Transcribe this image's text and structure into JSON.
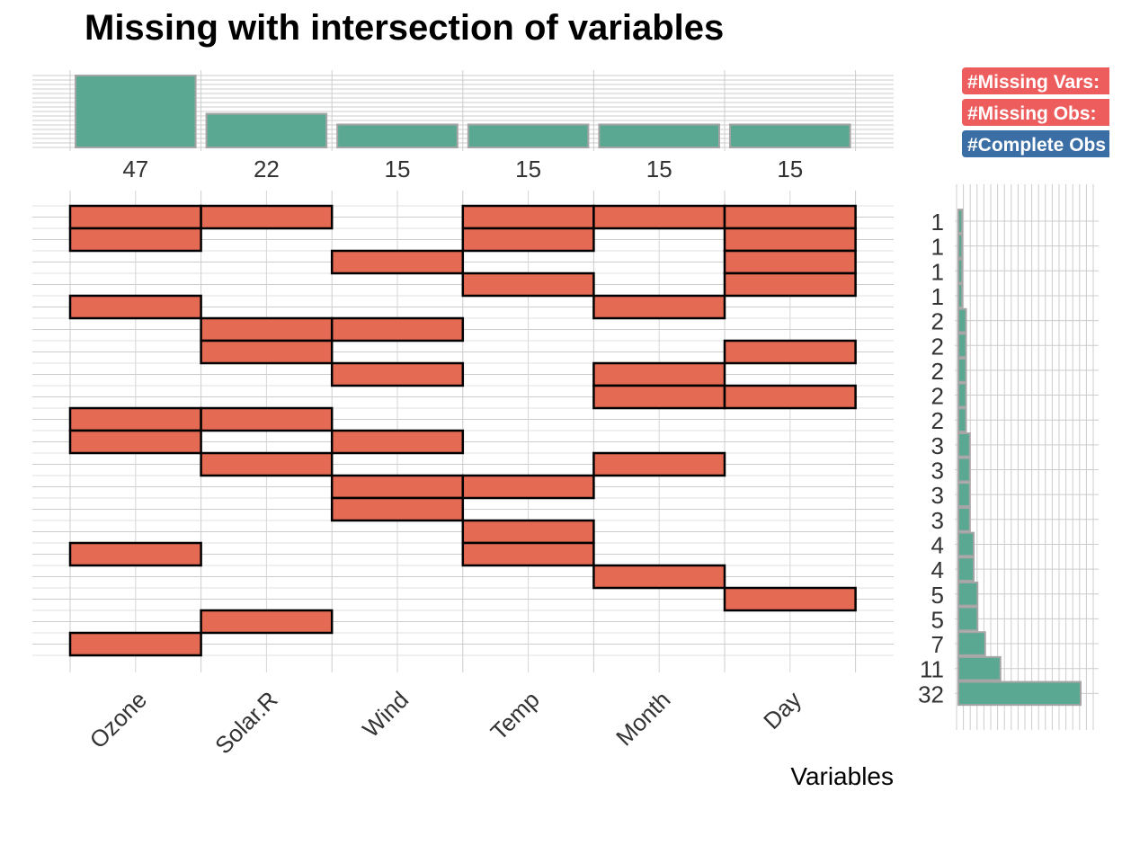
{
  "chart_data": {
    "type": "bar",
    "title": "Missing with intersection of variables",
    "xlabel": "Variables",
    "ylabel": "",
    "variables": [
      "Ozone",
      "Solar.R",
      "Wind",
      "Temp",
      "Month",
      "Day"
    ],
    "variable_missing_counts": [
      47,
      22,
      15,
      15,
      15,
      15
    ],
    "variable_bar_ylim": [
      0,
      47
    ],
    "combinations": [
      {
        "vars": [
          "Ozone",
          "Solar.R",
          "Temp",
          "Month",
          "Day"
        ],
        "count": 1
      },
      {
        "vars": [
          "Ozone",
          "Temp",
          "Day"
        ],
        "count": 1
      },
      {
        "vars": [
          "Wind",
          "Day"
        ],
        "count": 1
      },
      {
        "vars": [
          "Temp",
          "Day"
        ],
        "count": 1
      },
      {
        "vars": [
          "Ozone",
          "Month"
        ],
        "count": 2
      },
      {
        "vars": [
          "Solar.R",
          "Wind"
        ],
        "count": 2
      },
      {
        "vars": [
          "Solar.R",
          "Day"
        ],
        "count": 2
      },
      {
        "vars": [
          "Wind",
          "Month"
        ],
        "count": 2
      },
      {
        "vars": [
          "Month",
          "Day"
        ],
        "count": 2
      },
      {
        "vars": [
          "Ozone",
          "Solar.R"
        ],
        "count": 3
      },
      {
        "vars": [
          "Ozone",
          "Wind"
        ],
        "count": 3
      },
      {
        "vars": [
          "Solar.R",
          "Month"
        ],
        "count": 3
      },
      {
        "vars": [
          "Wind",
          "Temp"
        ],
        "count": 3
      },
      {
        "vars": [
          "Wind"
        ],
        "count": 4
      },
      {
        "vars": [
          "Temp"
        ],
        "count": 4
      },
      {
        "vars": [
          "Ozone",
          "Temp"
        ],
        "count": 5
      },
      {
        "vars": [
          "Month"
        ],
        "count": 5
      },
      {
        "vars": [
          "Day"
        ],
        "count": 7
      },
      {
        "vars": [
          "Solar.R"
        ],
        "count": 11
      },
      {
        "vars": [
          "Ozone"
        ],
        "count": 32
      }
    ],
    "combination_count_labels": [
      "1",
      "1",
      "1",
      "1",
      "2",
      "2",
      "2",
      "2",
      "2",
      "3",
      "3",
      "3",
      "3",
      "4",
      "4",
      "5",
      "5",
      "7",
      "11",
      "32"
    ],
    "combination_bar_xlim": [
      0,
      32
    ],
    "legend_placement": "top-right",
    "legend_badges": [
      "#Missing Vars:",
      "#Missing Obs:",
      "#Complete Obs"
    ],
    "grid": true,
    "colors": {
      "missing_tile": "#E46A53",
      "bar_fill": "#5BA892",
      "bar_outline": "#A5A5A5",
      "badge_missing": "#EE5D5D",
      "badge_complete": "#3A6EA5",
      "grid": "#CCCCCC"
    }
  }
}
